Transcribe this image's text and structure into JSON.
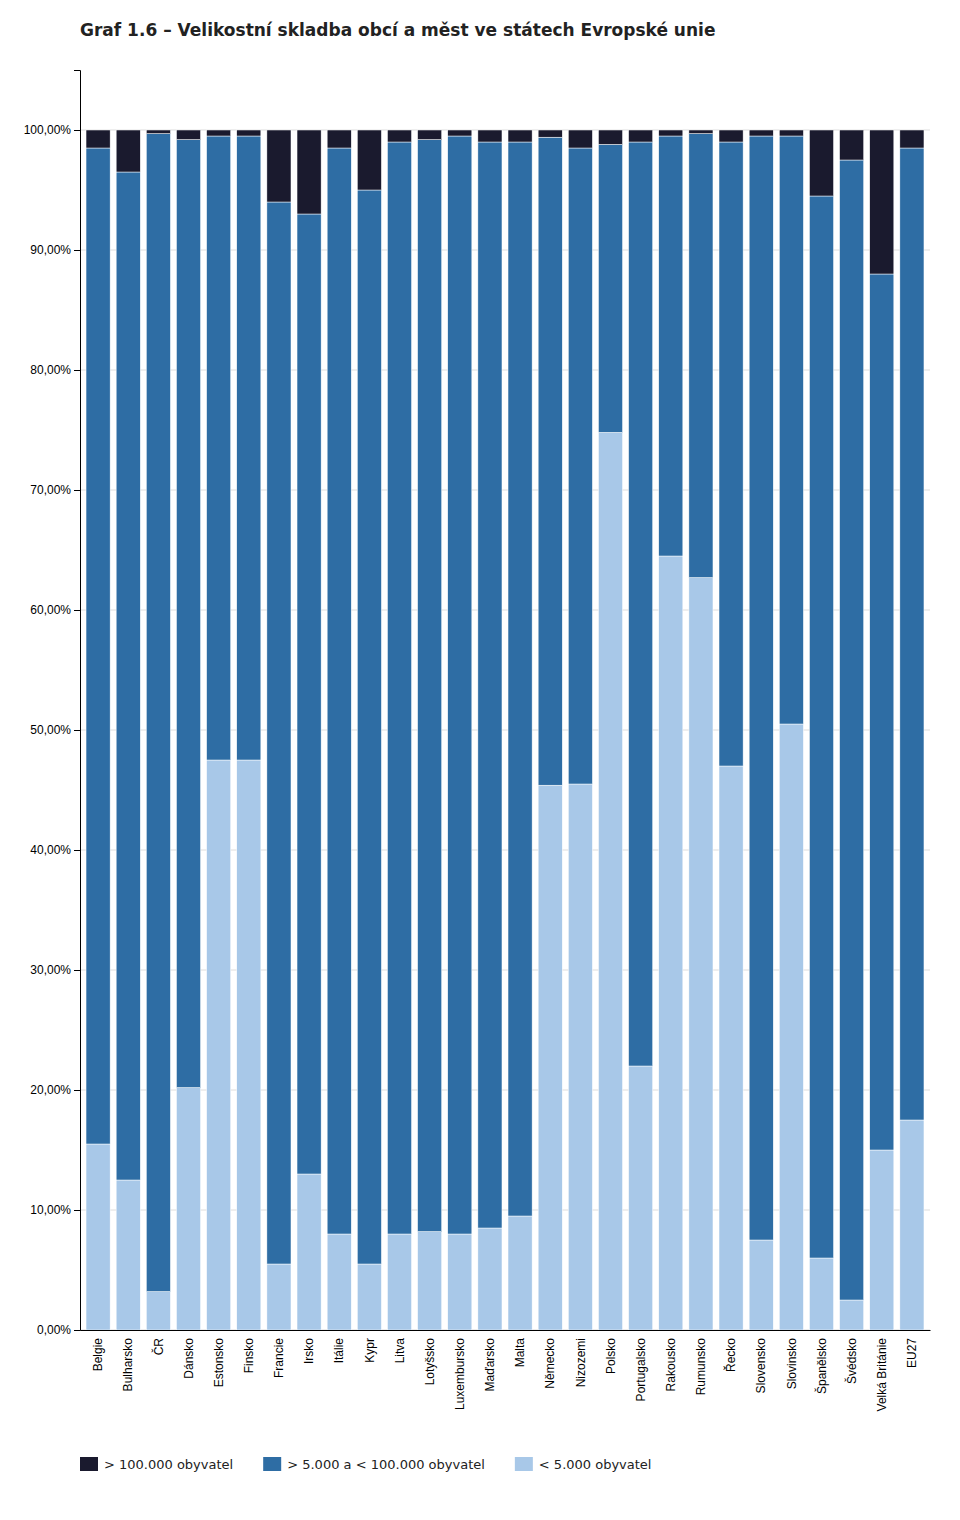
{
  "chart_data": {
    "type": "bar",
    "title": "Graf 1.6 – Velikostní skladba obcí a měst ve státech Evropské unie",
    "categories": [
      "Belgie",
      "Bulharsko",
      "ČR",
      "Dánsko",
      "Estonsko",
      "Finsko",
      "Francie",
      "Irsko",
      "Itálie",
      "Kypr",
      "Litva",
      "Lotyšsko",
      "Luxembursko",
      "Maďarsko",
      "Malta",
      "Německo",
      "Nizozemi",
      "Polsko",
      "Portugalsko",
      "Rakousko",
      "Rumunsko",
      "Řecko",
      "Slovensko",
      "Slovinsko",
      "Španělsko",
      "Švédsko",
      "Velká Británie",
      "EU27"
    ],
    "series": [
      {
        "name": "> 100.000 obyvatel",
        "color": "#1a1a2e",
        "values": [
          1.5,
          3.5,
          0.3,
          0.8,
          0.5,
          0.5,
          6.0,
          7.0,
          1.5,
          5.0,
          1.0,
          0.8,
          0.5,
          1.0,
          1.0,
          0.6,
          1.5,
          1.2,
          1.0,
          0.5,
          0.3,
          1.0,
          0.5,
          0.5,
          5.5,
          2.5,
          12.0,
          1.5
        ]
      },
      {
        "name": "> 5.000 a < 100.000 obyvatel",
        "color": "#2e6da4",
        "values": [
          83.0,
          84.0,
          96.5,
          79.0,
          52.0,
          52.0,
          88.5,
          80.0,
          90.5,
          89.5,
          91.0,
          91.0,
          91.5,
          90.5,
          89.5,
          54.0,
          53.0,
          24.0,
          77.0,
          35.0,
          37.0,
          52.0,
          92.0,
          49.0,
          88.5,
          95.0,
          73.0,
          81.0
        ]
      },
      {
        "name": "< 5.000 obyvatel",
        "color": "#a8c8e8",
        "values": [
          15.5,
          12.5,
          3.2,
          20.2,
          47.5,
          47.5,
          5.5,
          13.0,
          8.0,
          5.5,
          8.0,
          8.2,
          8.0,
          8.5,
          9.5,
          45.4,
          45.5,
          74.8,
          22.0,
          64.5,
          62.7,
          47.0,
          7.5,
          50.5,
          6.0,
          2.5,
          15.0,
          17.5
        ]
      }
    ],
    "stacked": true,
    "ylim": [
      0,
      105
    ],
    "yticks": [
      {
        "value": 0,
        "label": "0,00%"
      },
      {
        "value": 10,
        "label": "10,00%"
      },
      {
        "value": 20,
        "label": "20,00%"
      },
      {
        "value": 30,
        "label": "30,00%"
      },
      {
        "value": 40,
        "label": "40,00%"
      },
      {
        "value": 50,
        "label": "50,00%"
      },
      {
        "value": 60,
        "label": "60,00%"
      },
      {
        "value": 70,
        "label": "70,00%"
      },
      {
        "value": 80,
        "label": "80,00%"
      },
      {
        "value": 90,
        "label": "90,00%"
      },
      {
        "value": 100,
        "label": "100,00%"
      }
    ],
    "grid": true,
    "legend": "bottom"
  }
}
